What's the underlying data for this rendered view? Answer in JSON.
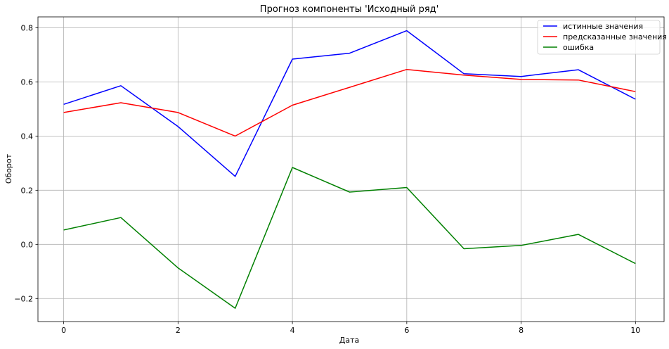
{
  "chart_data": {
    "type": "line",
    "title": "Прогноз компоненты 'Исходный ряд'",
    "xlabel": "Дата",
    "ylabel": "Оборот",
    "x": [
      0,
      1,
      2,
      3,
      4,
      5,
      6,
      7,
      8,
      9,
      10
    ],
    "xlim": [
      -0.45,
      10.5
    ],
    "ylim": [
      -0.285,
      0.84
    ],
    "xticks": [
      0,
      2,
      4,
      6,
      8,
      10
    ],
    "yticks": [
      -0.2,
      0.0,
      0.2,
      0.4,
      0.6,
      0.8
    ],
    "xtick_labels": [
      "0",
      "2",
      "4",
      "6",
      "8",
      "10"
    ],
    "ytick_labels": [
      "−0.2",
      "0.0",
      "0.2",
      "0.4",
      "0.6",
      "0.8"
    ],
    "grid": true,
    "legend_position": "top-right",
    "series": [
      {
        "name": "истинные значения",
        "color": "#0000ff",
        "values": [
          0.517,
          0.586,
          0.435,
          0.251,
          0.684,
          0.706,
          0.789,
          0.63,
          0.62,
          0.645,
          0.536
        ]
      },
      {
        "name": "предсказанные значения",
        "color": "#ff0000",
        "values": [
          0.487,
          0.523,
          0.487,
          0.4,
          0.514,
          0.58,
          0.646,
          0.625,
          0.609,
          0.607,
          0.564
        ]
      },
      {
        "name": "ошибка",
        "color": "#008000",
        "values": [
          0.053,
          0.099,
          -0.087,
          -0.236,
          0.284,
          0.193,
          0.21,
          -0.016,
          -0.004,
          0.037,
          -0.071
        ]
      }
    ]
  }
}
